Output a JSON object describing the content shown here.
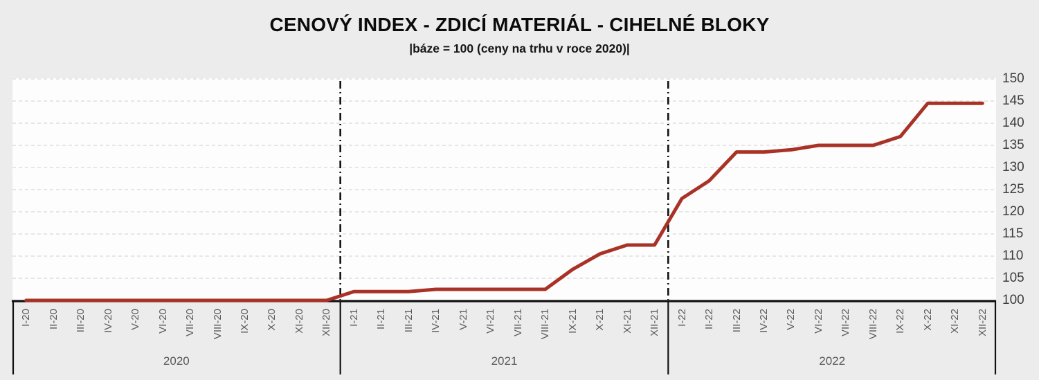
{
  "header": {
    "title": "CENOVÝ INDEX - ZDICÍ MATERIÁL - CIHELNÉ BLOKY",
    "subtitle": "|báze = 100 (ceny na trhu v roce 2020)|"
  },
  "chart_data": {
    "type": "line",
    "title": "CENOVÝ INDEX - ZDICÍ MATERIÁL - CIHELNÉ BLOKY",
    "subtitle": "|báze = 100 (ceny na trhu v roce 2020)|",
    "categories": [
      "I-20",
      "II-20",
      "III-20",
      "IV-20",
      "V-20",
      "VI-20",
      "VII-20",
      "VIII-20",
      "IX-20",
      "X-20",
      "XI-20",
      "XII-20",
      "I-21",
      "II-21",
      "III-21",
      "IV-21",
      "V-21",
      "VI-21",
      "VII-21",
      "VIII-21",
      "IX-21",
      "X-21",
      "XI-21",
      "XII-21",
      "I-22",
      "II-22",
      "III-22",
      "IV-22",
      "V-22",
      "VI-22",
      "VII-22",
      "VIII-22",
      "IX-22",
      "X-22",
      "XI-22",
      "XII-22"
    ],
    "values": [
      100,
      100,
      100,
      100,
      100,
      100,
      100,
      100,
      100,
      100,
      100,
      100,
      102,
      102,
      102,
      102.5,
      102.5,
      102.5,
      102.5,
      102.5,
      107,
      110.5,
      112.5,
      112.5,
      123,
      127,
      133.5,
      133.5,
      134,
      135,
      135,
      135,
      137,
      144.5,
      144.5,
      144.5
    ],
    "series_color": "#A93226",
    "ylim": [
      100,
      150
    ],
    "yticks": [
      100,
      105,
      110,
      115,
      120,
      125,
      130,
      135,
      140,
      145,
      150
    ],
    "grid": "horizontal-dashed",
    "legend": "none",
    "year_groups": [
      {
        "label": "2020",
        "start": 0,
        "end": 11
      },
      {
        "label": "2021",
        "start": 12,
        "end": 23
      },
      {
        "label": "2022",
        "start": 24,
        "end": 35
      }
    ],
    "dividers_after_index": [
      11,
      23
    ]
  },
  "colors": {
    "line": "#A93226",
    "gridline": "#d9d9d9",
    "axis": "#111111",
    "tick_text": "#595959",
    "ytick_text": "#3d3d3d"
  }
}
